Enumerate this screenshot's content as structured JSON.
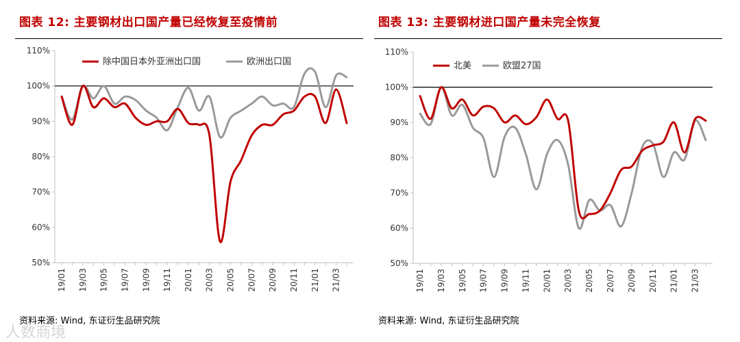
{
  "colors": {
    "red": "#c00000",
    "gray": "#999999",
    "axis": "#bfbfbf"
  },
  "watermark": "人数商境",
  "chart_data": [
    {
      "type": "line",
      "title": "图表 12:  主要钢材出口国产量已经恢复至疫情前",
      "source": "资料来源:  Wind, 东证衍生品研究院",
      "ylim": [
        50,
        110
      ],
      "yticks": [
        50,
        60,
        70,
        80,
        90,
        100,
        110
      ],
      "ytick_labels": [
        "50%",
        "60%",
        "70%",
        "80%",
        "90%",
        "100%",
        "110%"
      ],
      "reference_line": 100,
      "xticks": [
        "19/01",
        "19/03",
        "19/05",
        "19/07",
        "19/09",
        "19/11",
        "20/01",
        "20/03",
        "20/05",
        "20/07",
        "20/09",
        "20/11",
        "21/01",
        "21/03"
      ],
      "x": [
        "19/01",
        "19/02",
        "19/03",
        "19/04",
        "19/05",
        "19/06",
        "19/07",
        "19/08",
        "19/09",
        "19/10",
        "19/11",
        "19/12",
        "20/01",
        "20/02",
        "20/03",
        "20/04",
        "20/05",
        "20/06",
        "20/07",
        "20/08",
        "20/09",
        "20/10",
        "20/11",
        "20/12",
        "21/01",
        "21/02",
        "21/03",
        "21/04"
      ],
      "series": [
        {
          "name": "除中国日本外亚洲出口国",
          "color": "#c00000",
          "values": [
            97,
            89,
            100,
            94,
            96.5,
            94,
            95,
            91,
            89,
            90,
            90,
            93.5,
            89.5,
            89,
            86,
            56,
            73,
            79,
            86,
            89,
            89,
            92,
            93,
            97,
            97,
            89.5,
            99,
            89.5
          ]
        },
        {
          "name": "欧洲出口国",
          "color": "#999999",
          "values": [
            97,
            90.5,
            100,
            96.5,
            100,
            95,
            97,
            96,
            93,
            91,
            87.5,
            94,
            99.5,
            93,
            97,
            85.5,
            91,
            93,
            95,
            97,
            94.5,
            95,
            94,
            103.5,
            104,
            94,
            103,
            102.5
          ]
        }
      ]
    },
    {
      "type": "line",
      "title": "图表 13:  主要钢材进口国产量未完全恢复",
      "source": "资料来源:  Wind, 东证衍生品研究院",
      "ylim": [
        50,
        110
      ],
      "yticks": [
        50,
        60,
        70,
        80,
        90,
        100,
        110
      ],
      "ytick_labels": [
        "50%",
        "60%",
        "70%",
        "80%",
        "90%",
        "100%",
        "110%"
      ],
      "reference_line": 100,
      "xticks": [
        "19/01",
        "19/03",
        "19/05",
        "19/07",
        "19/09",
        "19/11",
        "20/01",
        "20/03",
        "20/05",
        "20/07",
        "20/09",
        "20/11",
        "21/01",
        "21/03"
      ],
      "x": [
        "19/01",
        "19/02",
        "19/03",
        "19/04",
        "19/05",
        "19/06",
        "19/07",
        "19/08",
        "19/09",
        "19/10",
        "19/11",
        "19/12",
        "20/01",
        "20/02",
        "20/03",
        "20/04",
        "20/05",
        "20/06",
        "20/07",
        "20/08",
        "20/09",
        "20/10",
        "20/11",
        "20/12",
        "21/01",
        "21/02",
        "21/03",
        "21/04"
      ],
      "series": [
        {
          "name": "北美",
          "color": "#c00000",
          "values": [
            97.5,
            91,
            100,
            94,
            96.5,
            92,
            94.5,
            94,
            90,
            92,
            89.5,
            91.5,
            96.5,
            91,
            90.5,
            65,
            64,
            65,
            70,
            76.5,
            77.5,
            82,
            83.5,
            84.5,
            90,
            81.5,
            91,
            90.5
          ]
        },
        {
          "name": "欧盟27国",
          "color": "#999999",
          "values": [
            92.5,
            89.5,
            100,
            92,
            95,
            88.5,
            85.5,
            74.5,
            86,
            88.5,
            81,
            71,
            81,
            85,
            78,
            60,
            68,
            65,
            66.5,
            60.5,
            70,
            83,
            84,
            74.5,
            81.5,
            79.5,
            90.5,
            85
          ]
        }
      ]
    }
  ]
}
